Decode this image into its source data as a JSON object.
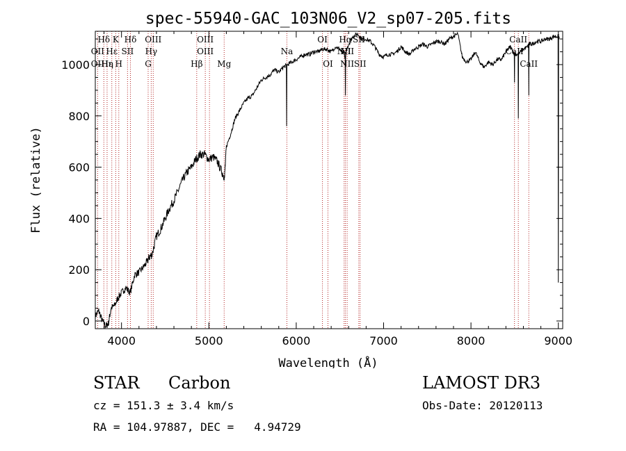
{
  "chart_data": {
    "type": "line",
    "title": "spec-55940-GAC_103N06_V2_sp07-205.fits",
    "xlabel": "Wavelength (Å)",
    "ylabel": "Flux (relative)",
    "xlim": [
      3700,
      9050
    ],
    "ylim": [
      -30,
      1130
    ],
    "x_ticks": [
      4000,
      5000,
      6000,
      7000,
      8000,
      9000
    ],
    "y_ticks": [
      0,
      200,
      400,
      600,
      800,
      1000
    ],
    "grid": false,
    "series": [
      {
        "name": "spectrum",
        "x": [
          3700,
          3740,
          3780,
          3820,
          3850,
          3880,
          3920,
          3960,
          4000,
          4050,
          4100,
          4150,
          4200,
          4250,
          4290,
          4320,
          4350,
          4400,
          4450,
          4500,
          4550,
          4600,
          4650,
          4700,
          4750,
          4800,
          4850,
          4900,
          4950,
          5000,
          5050,
          5100,
          5150,
          5180,
          5200,
          5250,
          5300,
          5350,
          5400,
          5450,
          5500,
          5550,
          5600,
          5650,
          5700,
          5750,
          5800,
          5850,
          5900,
          5950,
          6000,
          6050,
          6100,
          6150,
          6200,
          6250,
          6300,
          6350,
          6400,
          6450,
          6500,
          6550,
          6560,
          6570,
          6600,
          6650,
          6700,
          6750,
          6800,
          6850,
          6900,
          6950,
          7000,
          7050,
          7100,
          7150,
          7200,
          7250,
          7300,
          7350,
          7400,
          7450,
          7500,
          7550,
          7600,
          7650,
          7700,
          7750,
          7800,
          7850,
          7900,
          7950,
          8000,
          8050,
          8100,
          8150,
          8200,
          8250,
          8300,
          8350,
          8400,
          8450,
          8500,
          8540,
          8600,
          8650,
          8660,
          8700,
          8750,
          8800,
          8850,
          8900,
          8950,
          9000,
          9010
        ],
        "y": [
          20,
          40,
          0,
          -20,
          -10,
          50,
          60,
          90,
          110,
          130,
          110,
          180,
          190,
          210,
          230,
          250,
          260,
          330,
          360,
          400,
          440,
          470,
          510,
          550,
          580,
          600,
          630,
          650,
          650,
          630,
          640,
          620,
          580,
          560,
          680,
          730,
          790,
          820,
          850,
          870,
          880,
          910,
          940,
          950,
          960,
          980,
          970,
          990,
          1000,
          1010,
          1020,
          1030,
          1040,
          1040,
          1050,
          1050,
          1060,
          1060,
          1050,
          1070,
          1060,
          1040,
          1020,
          1050,
          1080,
          1110,
          1120,
          1100,
          1100,
          1090,
          1070,
          1040,
          1030,
          1040,
          1040,
          1050,
          1070,
          1050,
          1040,
          1060,
          1070,
          1080,
          1070,
          1080,
          1090,
          1090,
          1080,
          1100,
          1110,
          1120,
          1030,
          1010,
          1020,
          1050,
          1010,
          990,
          1010,
          1000,
          1020,
          1020,
          1050,
          1070,
          1040,
          1040,
          1060,
          1070,
          1080,
          1080,
          1090,
          1090,
          1100,
          1100,
          1110,
          1110,
          1100
        ]
      }
    ],
    "absorption_dips": [
      {
        "x": 5890,
        "y": 760
      },
      {
        "x": 6563,
        "y": 880
      },
      {
        "x": 8498,
        "y": 930
      },
      {
        "x": 8542,
        "y": 790
      },
      {
        "x": 8662,
        "y": 880
      },
      {
        "x": 9000,
        "y": 150
      }
    ],
    "line_markers": [
      {
        "label": "Hδ",
        "x": 3798,
        "row": 0
      },
      {
        "label": "OII",
        "x": 3727,
        "row": 1
      },
      {
        "label": "OII",
        "x": 3727,
        "row": 2
      },
      {
        "label": "Hε",
        "x": 3835,
        "row": 2
      },
      {
        "label": "Hε",
        "x": 3889,
        "row": 1
      },
      {
        "label": "Hη",
        "x": 3836,
        "row": 2
      },
      {
        "label": "K",
        "x": 3934,
        "row": 0
      },
      {
        "label": "H",
        "x": 3969,
        "row": 2
      },
      {
        "label": "SII",
        "x": 4069,
        "row": 1
      },
      {
        "label": "Hδ",
        "x": 4102,
        "row": 0
      },
      {
        "label": "OIII",
        "x": 4363,
        "row": 0
      },
      {
        "label": "Hγ",
        "x": 4340,
        "row": 1
      },
      {
        "label": "G",
        "x": 4305,
        "row": 2
      },
      {
        "label": "Hβ",
        "x": 4861,
        "row": 2
      },
      {
        "label": "OIII",
        "x": 4959,
        "row": 0
      },
      {
        "label": "OIII",
        "x": 4959,
        "row": 1
      },
      {
        "label": "Mg",
        "x": 5175,
        "row": 2
      },
      {
        "label": "Na",
        "x": 5893,
        "row": 1
      },
      {
        "label": "OI",
        "x": 6300,
        "row": 0
      },
      {
        "label": "OI",
        "x": 6363,
        "row": 2
      },
      {
        "label": "Hα",
        "x": 6563,
        "row": 0
      },
      {
        "label": "SII",
        "x": 6716,
        "row": 0
      },
      {
        "label": "NII",
        "x": 6548,
        "row": 1
      },
      {
        "label": "NII",
        "x": 6583,
        "row": 1
      },
      {
        "label": "NII",
        "x": 6583,
        "row": 2
      },
      {
        "label": "SII",
        "x": 6731,
        "row": 2
      },
      {
        "label": "CaII",
        "x": 8542,
        "row": 0
      },
      {
        "label": "CaII",
        "x": 8498,
        "row": 1
      },
      {
        "label": "CaII",
        "x": 8662,
        "row": 2
      }
    ],
    "line_positions": [
      3727,
      3798,
      3835,
      3889,
      3934,
      3969,
      4069,
      4102,
      4305,
      4340,
      4363,
      4861,
      4959,
      5007,
      5175,
      5893,
      6300,
      6363,
      6548,
      6563,
      6583,
      6716,
      6731,
      8498,
      8542,
      8662
    ]
  },
  "info": {
    "object_type": "STAR",
    "subclass": "Carbon",
    "survey": "LAMOST DR3",
    "velocity": "cz = 151.3 ± 3.4 km/s",
    "obs_date": "Obs-Date: 20120113",
    "coords": "RA = 104.97887, DEC =   4.94729"
  }
}
